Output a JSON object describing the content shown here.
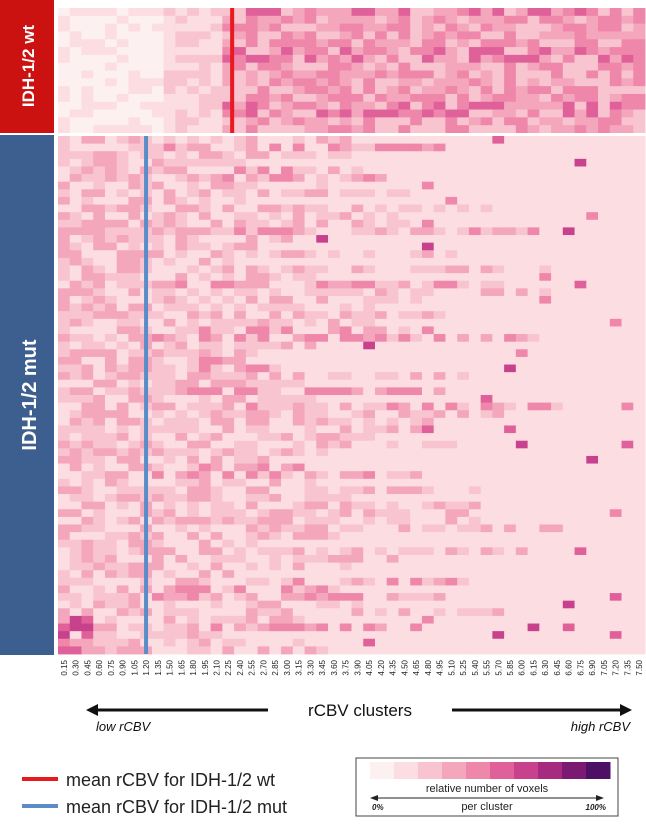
{
  "chart_data": {
    "type": "heatmap",
    "groups": [
      {
        "label": "IDH-1/2 wt",
        "rows": 16,
        "color": "#cc1111"
      },
      {
        "label": "IDH-1/2 mut",
        "rows": 68,
        "color": "#3d5f8f"
      }
    ],
    "x_ticks": [
      "0.15",
      "0.30",
      "0.45",
      "0.60",
      "0.75",
      "0.90",
      "1.05",
      "1.20",
      "1.35",
      "1.50",
      "1.65",
      "1.80",
      "1.95",
      "2.10",
      "2.25",
      "2.40",
      "2.55",
      "2.70",
      "2.85",
      "3.00",
      "3.15",
      "3.30",
      "3.45",
      "3.60",
      "3.75",
      "3.90",
      "4.05",
      "4.20",
      "4.35",
      "4.50",
      "4.65",
      "4.80",
      "4.95",
      "5.10",
      "5.25",
      "5.40",
      "5.55",
      "5.70",
      "5.85",
      "6.00",
      "6.15",
      "6.30",
      "6.45",
      "6.60",
      "6.75",
      "6.90",
      "7.05",
      "7.20",
      "7.35",
      "7.50"
    ],
    "xlabel": "rCBV clusters",
    "x_low_label": "low rCBV",
    "x_high_label": "high rCBV",
    "mean_lines": [
      {
        "label": "mean rCBV for IDH-1/2 wt",
        "group": "IDH-1/2 wt",
        "x": 2.3,
        "color": "#e8191f"
      },
      {
        "label": "mean rCBV for IDH-1/2 mut",
        "group": "IDH-1/2 mut",
        "x": 1.2,
        "color": "#5a8dc8"
      }
    ],
    "color_scale": {
      "title_line1": "relative number of voxels",
      "title_line2": "per cluster",
      "min_label": "0%",
      "max_label": "100%",
      "colors": [
        "#fdf0f0",
        "#fbdde2",
        "#f8c4d0",
        "#f4a6bd",
        "#ee87aa",
        "#e0619a",
        "#c8418c",
        "#a52a80",
        "#7a1a73",
        "#4e1065"
      ],
      "min": 0,
      "max": 100
    },
    "notes": "Per-cell values are sampled approximations of the pixel colors; most cells are light pink."
  }
}
